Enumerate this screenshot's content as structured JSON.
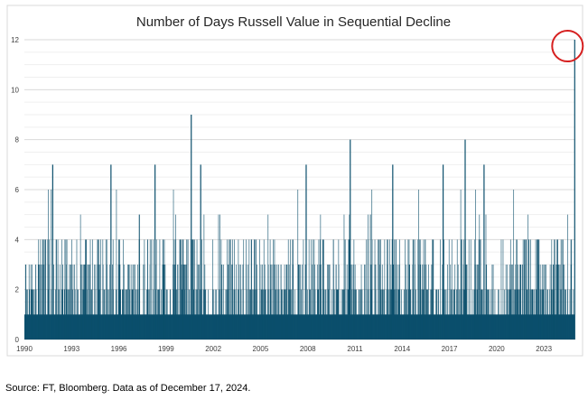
{
  "chart_data": {
    "type": "bar",
    "title": "Number of Days Russell Value in Sequential Decline",
    "xlabel": "",
    "ylabel": "",
    "ylim": [
      0,
      12
    ],
    "xlim": [
      1990,
      2025
    ],
    "y_ticks": [
      "0",
      "2",
      "4",
      "6",
      "8",
      "10",
      "12"
    ],
    "x_ticks": [
      "1990",
      "1993",
      "1996",
      "1999",
      "2002",
      "2005",
      "2008",
      "2011",
      "2014",
      "2017",
      "2020",
      "2023"
    ],
    "grid": true,
    "legend": "none",
    "bar_color": "#0b4f6c",
    "annotation_color": "#d62020",
    "notable_streaks": [
      {
        "year": 2000.6,
        "days": 9
      },
      {
        "year": 2010.7,
        "days": 8
      },
      {
        "year": 2018.0,
        "days": 8
      },
      {
        "year": 1991.8,
        "days": 7
      },
      {
        "year": 1995.5,
        "days": 7
      },
      {
        "year": 1998.3,
        "days": 7
      },
      {
        "year": 2001.2,
        "days": 7
      },
      {
        "year": 2007.9,
        "days": 7
      },
      {
        "year": 2013.4,
        "days": 7
      },
      {
        "year": 2016.6,
        "days": 7
      },
      {
        "year": 2019.2,
        "days": 7
      },
      {
        "year": 2024.96,
        "days": 12
      }
    ],
    "baseline_days": 1,
    "typical_max_days": 4
  },
  "source_note": "Source: FT, Bloomberg. Data as of December 17, 2024."
}
